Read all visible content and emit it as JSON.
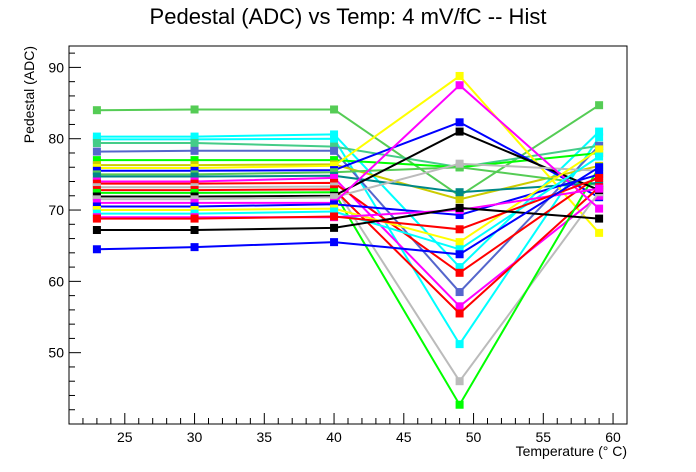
{
  "chart_data": {
    "type": "line",
    "title": "Pedestal (ADC) vs Temp: 4 mV/fC -- Hist",
    "xlabel": "Temperature (° C)",
    "ylabel": "Pedestal (ADC)",
    "xlim": [
      21,
      61
    ],
    "ylim": [
      40,
      93
    ],
    "xticks": [
      25,
      30,
      35,
      40,
      45,
      50,
      55,
      60
    ],
    "yticks": [
      50,
      60,
      70,
      80,
      90
    ],
    "x": [
      23,
      30,
      40,
      49,
      59
    ],
    "grid": false,
    "legend": "none",
    "series": [
      {
        "color": "#55cc55",
        "values": [
          84.0,
          84.1,
          84.1,
          72.0,
          84.7
        ]
      },
      {
        "color": "#00ffff",
        "values": [
          80.3,
          80.3,
          80.6,
          62.0,
          81.0
        ]
      },
      {
        "color": "#00ffff",
        "values": [
          79.9,
          79.9,
          80.0,
          51.2,
          80.2
        ]
      },
      {
        "color": "#44cc88",
        "values": [
          79.4,
          79.4,
          78.9,
          76.0,
          79.0
        ]
      },
      {
        "color": "#5566cc",
        "values": [
          78.2,
          78.3,
          78.3,
          58.5,
          79.0
        ]
      },
      {
        "color": "#00ff00",
        "values": [
          77.0,
          77.0,
          77.0,
          76.0,
          78.0
        ]
      },
      {
        "color": "#cccc00",
        "values": [
          76.3,
          76.3,
          76.4,
          71.5,
          76.2
        ]
      },
      {
        "color": "#ffff00",
        "values": [
          75.9,
          75.9,
          76.2,
          88.8,
          66.8
        ]
      },
      {
        "color": "#0000ff",
        "values": [
          75.5,
          75.5,
          75.6,
          82.3,
          71.8
        ]
      },
      {
        "color": "#55cc55",
        "values": [
          75.0,
          75.0,
          75.3,
          76.0,
          73.5
        ]
      },
      {
        "color": "#008888",
        "values": [
          74.7,
          74.7,
          74.8,
          72.5,
          73.8
        ]
      },
      {
        "color": "#ff00ff",
        "values": [
          74.0,
          74.0,
          74.5,
          56.5,
          72.0
        ]
      },
      {
        "color": "#ff0000",
        "values": [
          73.7,
          73.7,
          73.8,
          61.2,
          74.8
        ]
      },
      {
        "color": "#bbbbbb",
        "values": [
          73.2,
          73.2,
          73.3,
          46.0,
          72.5
        ]
      },
      {
        "color": "#ff0000",
        "values": [
          72.8,
          72.8,
          72.9,
          55.5,
          73.2
        ]
      },
      {
        "color": "#00ff00",
        "values": [
          72.4,
          72.4,
          72.5,
          42.7,
          76.0
        ]
      },
      {
        "color": "#000000",
        "values": [
          71.9,
          71.9,
          72.0,
          81.0,
          72.8
        ]
      },
      {
        "color": "#bbbbbb",
        "values": [
          71.5,
          71.5,
          71.8,
          76.5,
          75.5
        ]
      },
      {
        "color": "#ff00ff",
        "values": [
          71.0,
          71.0,
          71.0,
          87.5,
          70.2
        ]
      },
      {
        "color": "#0000ff",
        "values": [
          70.5,
          70.5,
          70.8,
          69.3,
          75.0
        ]
      },
      {
        "color": "#ffff00",
        "values": [
          70.0,
          70.0,
          70.2,
          65.5,
          78.5
        ]
      },
      {
        "color": "#00ffff",
        "values": [
          69.5,
          69.5,
          69.8,
          64.5,
          77.5
        ]
      },
      {
        "color": "#ff00ff",
        "values": [
          69.0,
          69.0,
          69.0,
          70.0,
          73.0
        ]
      },
      {
        "color": "#ff0000",
        "values": [
          68.8,
          68.8,
          69.1,
          67.3,
          74.5
        ]
      },
      {
        "color": "#000000",
        "values": [
          67.2,
          67.2,
          67.5,
          70.3,
          68.8
        ]
      },
      {
        "color": "#0000ff",
        "values": [
          64.5,
          64.8,
          65.5,
          63.8,
          76.0
        ]
      }
    ]
  }
}
